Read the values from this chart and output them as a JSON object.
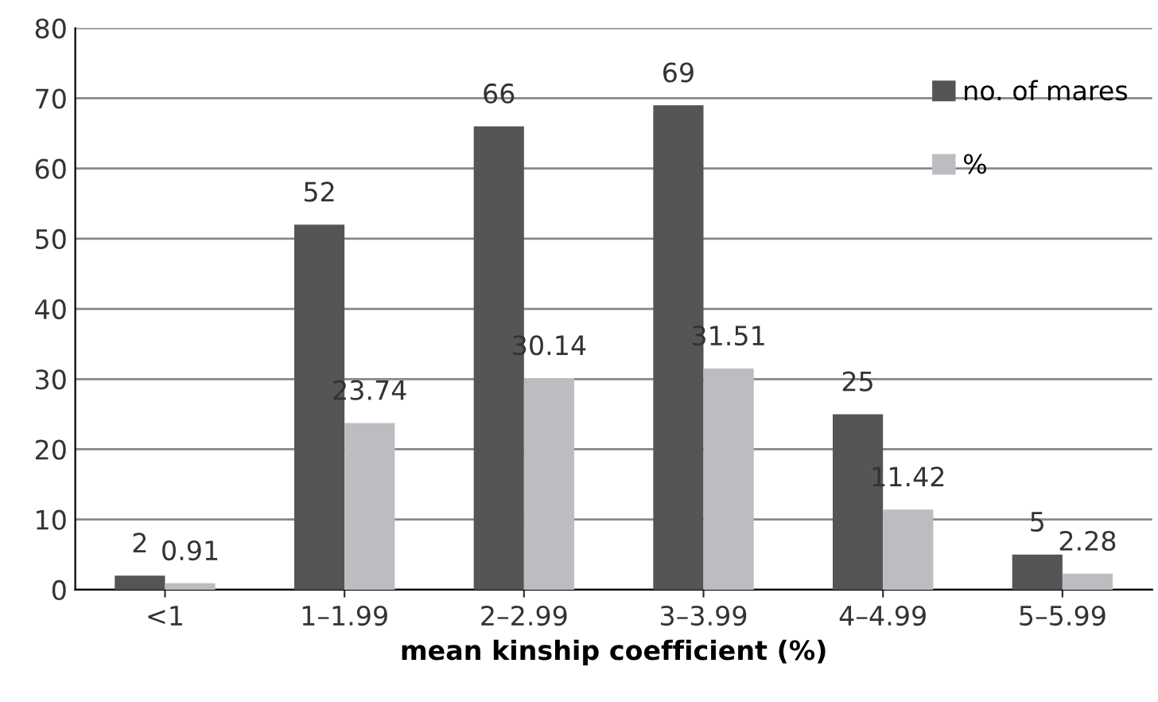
{
  "chart_data": {
    "type": "bar",
    "xlabel": "mean kinship coefficient (%)",
    "categories": [
      "<1",
      "1–1.99",
      "2–2.99",
      "3–3.99",
      "4–4.99",
      "5–5.99"
    ],
    "series": [
      {
        "name": "no. of mares",
        "color": "#555555",
        "values": [
          2,
          52,
          66,
          69,
          25,
          5
        ]
      },
      {
        "name": "%",
        "color": "#bcbdc0",
        "values": [
          0.91,
          23.74,
          30.14,
          31.51,
          11.42,
          2.28
        ]
      }
    ],
    "ylim": [
      0,
      80
    ],
    "yticks": [
      0,
      10,
      20,
      30,
      40,
      50,
      60,
      70,
      80
    ],
    "grid": "y",
    "legend": "top right",
    "data_labels": true
  }
}
